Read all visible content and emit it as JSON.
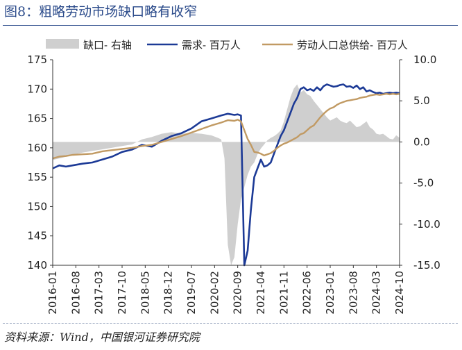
{
  "figure": {
    "title": "图8：粗略劳动市场缺口略有收窄",
    "source": "资料来源：Wind，中国银河证券研究院"
  },
  "colors": {
    "gap": "#cfcfcf",
    "demand": "#1c3a96",
    "labor": "#c19a63"
  },
  "chart_data": {
    "type": "line",
    "x_ticks": [
      "2016-01",
      "2016-08",
      "2017-03",
      "2017-10",
      "2018-05",
      "2018-12",
      "2019-07",
      "2020-02",
      "2020-09",
      "2021-04",
      "2021-11",
      "2022-06",
      "2023-01",
      "2023-08",
      "2024-03",
      "2024-10"
    ],
    "y_left": {
      "ylim": [
        140,
        175
      ],
      "ticks": [
        140,
        145,
        150,
        155,
        160,
        165,
        170,
        175
      ]
    },
    "y_right": {
      "ylim": [
        -15,
        10
      ],
      "ticks": [
        "-15.0",
        "-10.0",
        "-5.0",
        "0.0",
        "5.0",
        "10.0"
      ]
    },
    "legend": {
      "position": "top"
    },
    "series": [
      {
        "name": "缺口- 右轴",
        "axis": "right",
        "type": "area",
        "color_key": "gap",
        "values": [
          [
            0,
            -2.2
          ],
          [
            2,
            -2.0
          ],
          [
            4,
            -1.8
          ],
          [
            6,
            -1.6
          ],
          [
            9,
            -1.3
          ],
          [
            12,
            -1.1
          ],
          [
            15,
            -0.9
          ],
          [
            18,
            -0.7
          ],
          [
            21,
            -0.5
          ],
          [
            24,
            -0.3
          ],
          [
            27,
            0.3
          ],
          [
            30,
            0.6
          ],
          [
            33,
            1.0
          ],
          [
            36,
            1.2
          ],
          [
            39,
            1.0
          ],
          [
            42,
            1.1
          ],
          [
            45,
            1.0
          ],
          [
            48,
            0.8
          ],
          [
            50,
            0.5
          ],
          [
            51,
            0.3
          ],
          [
            52,
            -2.0
          ],
          [
            53,
            -12.5
          ],
          [
            54,
            -16.0
          ],
          [
            55,
            -14.0
          ],
          [
            56,
            -10.0
          ],
          [
            57,
            -7.0
          ],
          [
            58,
            -5.5
          ],
          [
            59,
            -4.0
          ],
          [
            60,
            -3.0
          ],
          [
            61,
            -2.5
          ],
          [
            62,
            -1.5
          ],
          [
            63,
            -0.8
          ],
          [
            64,
            -0.3
          ],
          [
            65,
            0.2
          ],
          [
            66,
            0.5
          ],
          [
            67,
            0.7
          ],
          [
            68,
            1.0
          ],
          [
            69,
            1.4
          ],
          [
            70,
            2.5
          ],
          [
            71,
            4.0
          ],
          [
            72,
            5.5
          ],
          [
            73,
            6.5
          ],
          [
            74,
            7.0
          ],
          [
            75,
            6.0
          ],
          [
            76,
            6.3
          ],
          [
            77,
            5.8
          ],
          [
            78,
            5.6
          ],
          [
            79,
            5.0
          ],
          [
            80,
            4.5
          ],
          [
            81,
            4.0
          ],
          [
            82,
            3.5
          ],
          [
            83,
            3.0
          ],
          [
            84,
            2.6
          ],
          [
            85,
            2.8
          ],
          [
            86,
            3.0
          ],
          [
            87,
            2.6
          ],
          [
            88,
            2.4
          ],
          [
            89,
            2.3
          ],
          [
            90,
            2.6
          ],
          [
            91,
            2.2
          ],
          [
            92,
            1.8
          ],
          [
            93,
            1.9
          ],
          [
            94,
            2.2
          ],
          [
            95,
            2.5
          ],
          [
            96,
            1.8
          ],
          [
            97,
            1.5
          ],
          [
            98,
            1.0
          ],
          [
            99,
            0.9
          ],
          [
            100,
            1.0
          ],
          [
            101,
            0.7
          ],
          [
            102,
            0.4
          ],
          [
            103,
            0.3
          ],
          [
            104,
            0.8
          ],
          [
            105,
            0.5
          ]
        ]
      },
      {
        "name": "需求- 百万人",
        "axis": "left",
        "type": "line",
        "color_key": "demand",
        "values": [
          [
            0,
            156.5
          ],
          [
            2,
            157.0
          ],
          [
            4,
            156.8
          ],
          [
            6,
            157.0
          ],
          [
            9,
            157.3
          ],
          [
            12,
            157.5
          ],
          [
            15,
            158.0
          ],
          [
            18,
            158.5
          ],
          [
            21,
            159.3
          ],
          [
            24,
            159.7
          ],
          [
            27,
            160.5
          ],
          [
            30,
            160.2
          ],
          [
            33,
            161.2
          ],
          [
            36,
            162.0
          ],
          [
            39,
            162.5
          ],
          [
            42,
            163.3
          ],
          [
            45,
            164.5
          ],
          [
            48,
            165.0
          ],
          [
            51,
            165.5
          ],
          [
            53,
            165.8
          ],
          [
            55,
            165.6
          ],
          [
            56,
            165.7
          ],
          [
            57,
            165.5
          ],
          [
            58,
            139.5
          ],
          [
            59,
            142.5
          ],
          [
            60,
            149.5
          ],
          [
            61,
            155.0
          ],
          [
            62,
            156.5
          ],
          [
            63,
            158.0
          ],
          [
            64,
            156.8
          ],
          [
            65,
            157.0
          ],
          [
            66,
            157.5
          ],
          [
            67,
            159.0
          ],
          [
            68,
            160.5
          ],
          [
            69,
            162.0
          ],
          [
            70,
            163.0
          ],
          [
            71,
            164.5
          ],
          [
            72,
            166.0
          ],
          [
            73,
            167.5
          ],
          [
            74,
            168.5
          ],
          [
            75,
            170.0
          ],
          [
            76,
            170.3
          ],
          [
            77,
            169.8
          ],
          [
            78,
            170.0
          ],
          [
            79,
            169.7
          ],
          [
            80,
            170.3
          ],
          [
            81,
            169.8
          ],
          [
            82,
            170.5
          ],
          [
            83,
            170.8
          ],
          [
            84,
            170.6
          ],
          [
            85,
            170.4
          ],
          [
            86,
            170.5
          ],
          [
            87,
            170.7
          ],
          [
            88,
            170.8
          ],
          [
            89,
            170.4
          ],
          [
            90,
            170.5
          ],
          [
            91,
            170.2
          ],
          [
            92,
            170.6
          ],
          [
            93,
            170.0
          ],
          [
            94,
            170.3
          ],
          [
            95,
            169.6
          ],
          [
            96,
            169.8
          ],
          [
            97,
            169.5
          ],
          [
            98,
            169.3
          ],
          [
            99,
            169.4
          ],
          [
            100,
            169.2
          ],
          [
            101,
            169.3
          ],
          [
            102,
            169.4
          ],
          [
            103,
            169.3
          ],
          [
            104,
            169.4
          ],
          [
            105,
            169.3
          ]
        ]
      },
      {
        "name": "劳动人口总供给- 百万人",
        "axis": "left",
        "type": "line",
        "color_key": "labor",
        "values": [
          [
            0,
            158.2
          ],
          [
            2,
            158.5
          ],
          [
            4,
            158.6
          ],
          [
            6,
            158.8
          ],
          [
            9,
            158.9
          ],
          [
            12,
            159.0
          ],
          [
            15,
            159.4
          ],
          [
            18,
            159.6
          ],
          [
            21,
            159.8
          ],
          [
            24,
            160.0
          ],
          [
            27,
            160.3
          ],
          [
            30,
            160.5
          ],
          [
            33,
            161.0
          ],
          [
            36,
            161.5
          ],
          [
            39,
            162.0
          ],
          [
            42,
            162.6
          ],
          [
            45,
            163.2
          ],
          [
            48,
            163.8
          ],
          [
            51,
            164.3
          ],
          [
            53,
            164.7
          ],
          [
            55,
            164.6
          ],
          [
            56,
            164.8
          ],
          [
            57,
            164.5
          ],
          [
            58,
            163.0
          ],
          [
            59,
            161.5
          ],
          [
            60,
            160.5
          ],
          [
            61,
            159.3
          ],
          [
            62,
            159.2
          ],
          [
            63,
            159.0
          ],
          [
            64,
            158.7
          ],
          [
            65,
            158.9
          ],
          [
            66,
            159.1
          ],
          [
            67,
            159.5
          ],
          [
            68,
            160.0
          ],
          [
            69,
            160.4
          ],
          [
            70,
            160.7
          ],
          [
            71,
            160.9
          ],
          [
            72,
            161.2
          ],
          [
            73,
            161.5
          ],
          [
            74,
            161.8
          ],
          [
            75,
            162.3
          ],
          [
            76,
            162.5
          ],
          [
            77,
            163.0
          ],
          [
            78,
            163.5
          ],
          [
            79,
            163.8
          ],
          [
            80,
            164.5
          ],
          [
            81,
            165.2
          ],
          [
            82,
            165.8
          ],
          [
            83,
            166.3
          ],
          [
            84,
            166.7
          ],
          [
            85,
            166.9
          ],
          [
            86,
            167.3
          ],
          [
            87,
            167.6
          ],
          [
            88,
            167.8
          ],
          [
            89,
            168.0
          ],
          [
            90,
            168.1
          ],
          [
            91,
            168.2
          ],
          [
            92,
            168.3
          ],
          [
            93,
            168.5
          ],
          [
            94,
            168.6
          ],
          [
            95,
            168.7
          ],
          [
            96,
            168.9
          ],
          [
            97,
            169.0
          ],
          [
            98,
            169.1
          ],
          [
            99,
            169.0
          ],
          [
            100,
            169.1
          ],
          [
            101,
            169.2
          ],
          [
            102,
            169.1
          ],
          [
            103,
            169.2
          ],
          [
            104,
            169.1
          ],
          [
            105,
            169.2
          ]
        ]
      }
    ]
  }
}
